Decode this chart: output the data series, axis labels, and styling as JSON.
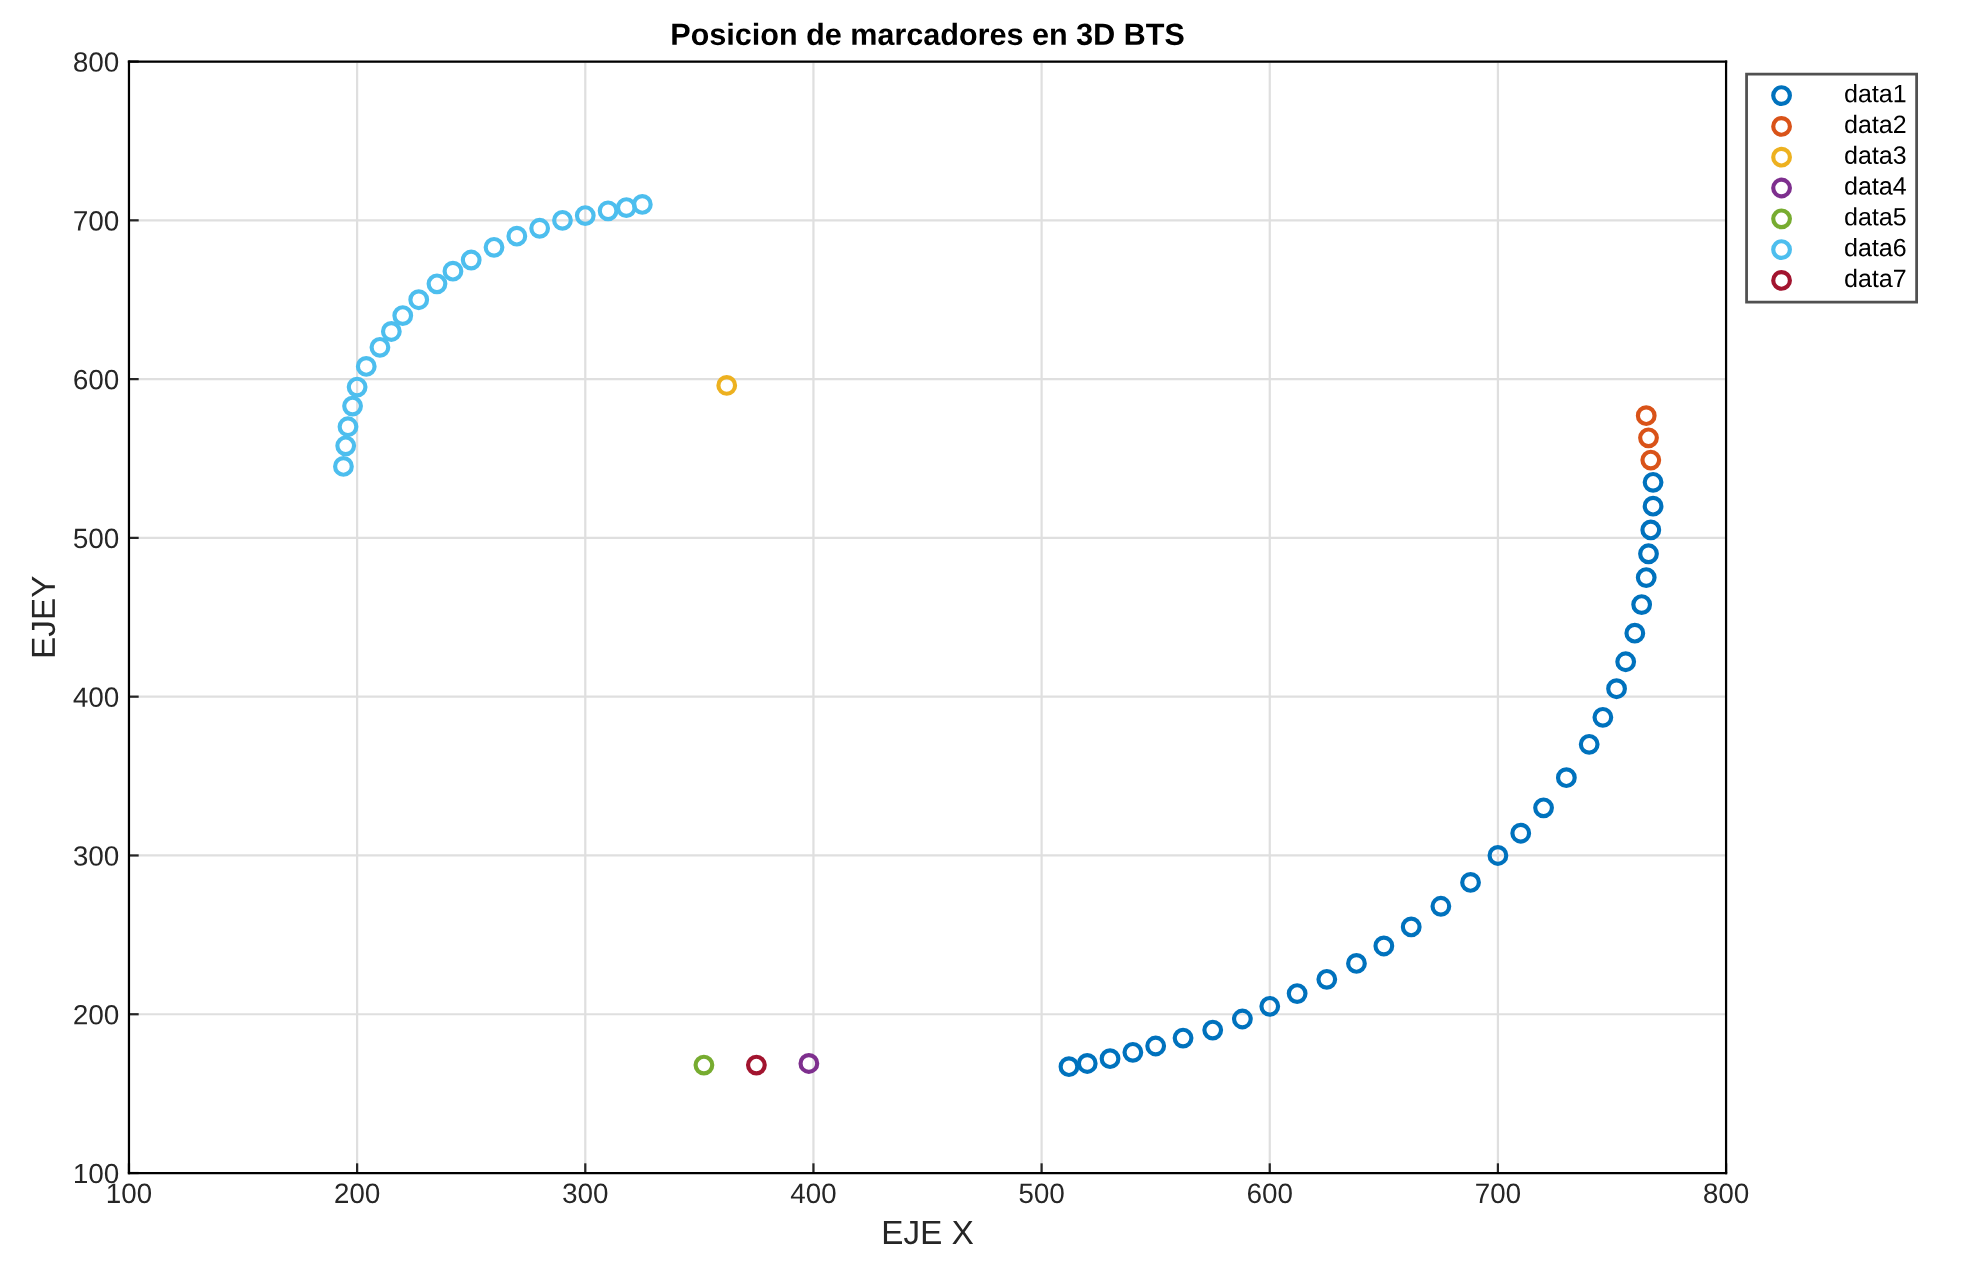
{
  "chart_data": {
    "type": "scatter",
    "title": "Posicion de marcadores en 3D BTS",
    "xlabel": "EJE X",
    "ylabel": "EJEY",
    "xlim": [
      100,
      800
    ],
    "ylim": [
      100,
      800
    ],
    "xticks": [
      100,
      200,
      300,
      400,
      500,
      600,
      700,
      800
    ],
    "yticks": [
      100,
      200,
      300,
      400,
      500,
      600,
      700,
      800
    ],
    "grid": true,
    "legend": "top right",
    "marker": "circle",
    "series": [
      {
        "name": "data1",
        "color": "#0072bd",
        "x": [
          512,
          520,
          530,
          540,
          550,
          562,
          575,
          588,
          600,
          612,
          625,
          638,
          650,
          662,
          675,
          688,
          700,
          710,
          720,
          730,
          740,
          746,
          752,
          756,
          760,
          763,
          765,
          766,
          767,
          768,
          768
        ],
        "values": [
          167,
          169,
          172,
          176,
          180,
          185,
          190,
          197,
          205,
          213,
          222,
          232,
          243,
          255,
          268,
          283,
          300,
          314,
          330,
          349,
          370,
          387,
          405,
          422,
          440,
          458,
          475,
          490,
          505,
          520,
          535
        ]
      },
      {
        "name": "data2",
        "color": "#d95319",
        "x": [
          765,
          766,
          767
        ],
        "values": [
          577,
          563,
          549
        ]
      },
      {
        "name": "data3",
        "color": "#edb120",
        "x": [
          362
        ],
        "values": [
          596
        ]
      },
      {
        "name": "data4",
        "color": "#7e2f8e",
        "x": [
          398
        ],
        "values": [
          169
        ]
      },
      {
        "name": "data5",
        "color": "#77ac30",
        "x": [
          352
        ],
        "values": [
          168
        ]
      },
      {
        "name": "data6",
        "color": "#4dbeee",
        "x": [
          194,
          195,
          196,
          198,
          200,
          204,
          210,
          215,
          220,
          227,
          235,
          242,
          250,
          260,
          270,
          280,
          290,
          300,
          310,
          318,
          325
        ],
        "values": [
          545,
          558,
          570,
          583,
          595,
          608,
          620,
          630,
          640,
          650,
          660,
          668,
          675,
          683,
          690,
          695,
          700,
          703,
          706,
          708,
          710
        ]
      },
      {
        "name": "data7",
        "color": "#a2142f",
        "x": [
          375
        ],
        "values": [
          168
        ]
      }
    ]
  }
}
